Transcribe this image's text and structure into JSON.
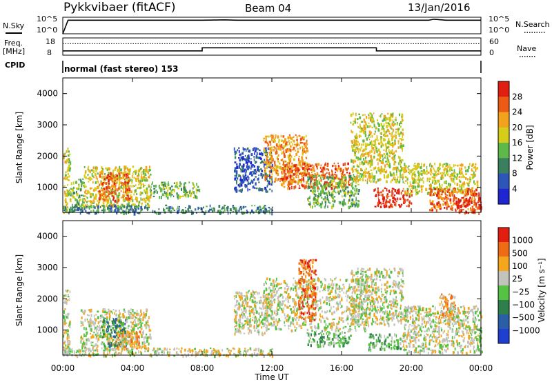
{
  "header": {
    "station": "Pykkvibaer (fitACF)",
    "beam": "Beam 04",
    "date": "13/Jan/2016",
    "cpid_label": "CPID",
    "cpid_value": "normal (fast stereo) 153"
  },
  "strip_labels": {
    "nsky": "N.Sky",
    "nsky_ticks": [
      "10^5",
      "10^0"
    ],
    "nsearch": "N.Search",
    "nsearch_ticks": [
      "10^5",
      "10^0"
    ],
    "freq_line1": "Freq.",
    "freq_line2": "[MHz]",
    "freq_ticks": [
      "18",
      "8"
    ],
    "nave": "Nave",
    "nave_ticks": [
      "60",
      "0"
    ]
  },
  "chart_data": [
    {
      "type": "line",
      "panel": "noise",
      "ylabels_left": "N.Sky",
      "ylabels_right": "N.Search",
      "x_hours": [
        0,
        0.3,
        2,
        4,
        6,
        8,
        9.3,
        10,
        12,
        14,
        16,
        18,
        20,
        21,
        21.3,
        22,
        24
      ],
      "y_nsky_log": [
        0,
        4.1,
        4.1,
        4.1,
        4.1,
        4.1,
        4.2,
        4.1,
        4.1,
        4.1,
        4.1,
        4.1,
        4.1,
        4.1,
        4.4,
        4.1,
        4.1
      ]
    },
    {
      "type": "line",
      "panel": "frequency",
      "x_hours": [
        0,
        8,
        8,
        18,
        18,
        24
      ],
      "freq_mhz": [
        10.5,
        10.5,
        12.3,
        12.3,
        10.5,
        10.5
      ],
      "nave_level": 40,
      "freq_ylim": [
        8,
        18
      ],
      "nave_ylim": [
        0,
        60
      ]
    },
    {
      "type": "heatmap",
      "panel": "power",
      "xlabel": "",
      "ylabel": "Slant Range [km]",
      "xlim_hours": [
        0,
        24
      ],
      "ylim_km": [
        200,
        4500
      ],
      "yticks": [
        "1000",
        "2000",
        "3000",
        "4000"
      ],
      "colorbar_label": "Power [dB]",
      "colorbar_ticks": [
        "28",
        "24",
        "20",
        "16",
        "12",
        "8",
        "4"
      ],
      "colors": [
        "#1f26d1",
        "#2e55b8",
        "#3a7f5e",
        "#5fb84a",
        "#d6cc1a",
        "#f3a21b",
        "#ec5a16",
        "#e01f10"
      ],
      "regions": [
        {
          "t": [
            0.0,
            0.4
          ],
          "r": [
            200,
            2300
          ],
          "level": 4
        },
        {
          "t": [
            0.4,
            1.2
          ],
          "r": [
            300,
            1300
          ],
          "level": 3
        },
        {
          "t": [
            1.2,
            5.0
          ],
          "r": [
            400,
            1700
          ],
          "level": 4
        },
        {
          "t": [
            2.0,
            3.8
          ],
          "r": [
            600,
            1500
          ],
          "level": 6
        },
        {
          "t": [
            5.0,
            7.8
          ],
          "r": [
            700,
            1200
          ],
          "level": 3
        },
        {
          "t": [
            0.0,
            12.0
          ],
          "r": [
            200,
            450
          ],
          "level": 2
        },
        {
          "t": [
            9.8,
            12.0
          ],
          "r": [
            900,
            2300
          ],
          "level": 1
        },
        {
          "t": [
            11.5,
            14.0
          ],
          "r": [
            1200,
            2700
          ],
          "level": 5
        },
        {
          "t": [
            12.5,
            16.5
          ],
          "r": [
            1000,
            1800
          ],
          "level": 6
        },
        {
          "t": [
            14.0,
            17.0
          ],
          "r": [
            400,
            1400
          ],
          "level": 3
        },
        {
          "t": [
            16.5,
            19.5
          ],
          "r": [
            1200,
            3400
          ],
          "level": 4
        },
        {
          "t": [
            17.8,
            20.0
          ],
          "r": [
            400,
            1000
          ],
          "level": 7
        },
        {
          "t": [
            19.5,
            23.8
          ],
          "r": [
            800,
            1800
          ],
          "level": 4
        },
        {
          "t": [
            21.0,
            23.9
          ],
          "r": [
            300,
            1000
          ],
          "level": 6
        },
        {
          "t": [
            22.5,
            24.0
          ],
          "r": [
            200,
            700
          ],
          "level": 7
        }
      ]
    },
    {
      "type": "heatmap",
      "panel": "velocity",
      "xlabel": "Time UT",
      "ylabel": "Slant Range [km]",
      "xlim_hours": [
        0,
        24
      ],
      "ylim_km": [
        200,
        4500
      ],
      "xticks": [
        "00:00",
        "04:00",
        "08:00",
        "12:00",
        "16:00",
        "20:00",
        "00:00"
      ],
      "yticks": [
        "1000",
        "2000",
        "3000",
        "4000"
      ],
      "colorbar_label": "Velocity [m s⁻¹]",
      "colorbar_ticks": [
        "1000",
        "500",
        "100",
        "25",
        "−25",
        "−100",
        "−500",
        "−1000"
      ],
      "colors": [
        "#1e3fd0",
        "#2a5fa8",
        "#2f7f4a",
        "#55c244",
        "#c3c3bd",
        "#f5a61c",
        "#ef6b15",
        "#e21e10"
      ],
      "regions": [
        {
          "t": [
            0.0,
            0.4
          ],
          "r": [
            200,
            2300
          ],
          "level": 4
        },
        {
          "t": [
            1.0,
            5.0
          ],
          "r": [
            400,
            1700
          ],
          "level": 4
        },
        {
          "t": [
            2.2,
            3.6
          ],
          "r": [
            500,
            1400
          ],
          "level": 2
        },
        {
          "t": [
            3.0,
            4.5
          ],
          "r": [
            400,
            1000
          ],
          "level": 5
        },
        {
          "t": [
            0.0,
            12.0
          ],
          "r": [
            200,
            450
          ],
          "level": 4
        },
        {
          "t": [
            9.8,
            12.0
          ],
          "r": [
            900,
            2300
          ],
          "level": 4
        },
        {
          "t": [
            11.5,
            17.5
          ],
          "r": [
            1000,
            2700
          ],
          "level": 4
        },
        {
          "t": [
            13.5,
            14.5
          ],
          "r": [
            1300,
            3300
          ],
          "level": 6
        },
        {
          "t": [
            14.0,
            16.5
          ],
          "r": [
            500,
            1000
          ],
          "level": 3
        },
        {
          "t": [
            16.5,
            19.5
          ],
          "r": [
            1200,
            3000
          ],
          "level": 4
        },
        {
          "t": [
            17.5,
            19.5
          ],
          "r": [
            400,
            900
          ],
          "level": 3
        },
        {
          "t": [
            19.5,
            24.0
          ],
          "r": [
            300,
            1800
          ],
          "level": 4
        },
        {
          "t": [
            21.5,
            22.5
          ],
          "r": [
            1200,
            2200
          ],
          "level": 5
        }
      ]
    }
  ]
}
